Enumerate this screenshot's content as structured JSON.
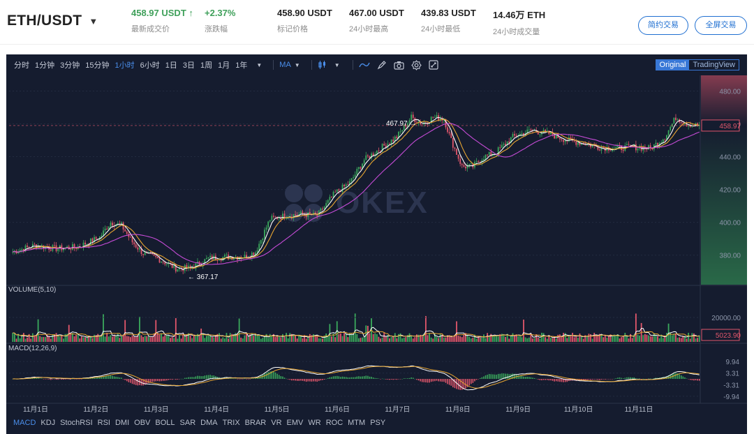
{
  "header": {
    "pair": "ETH/USDT",
    "stats": [
      {
        "value": "458.97 USDT ↑",
        "label": "最新成交价",
        "tone": "up",
        "left": 188
      },
      {
        "value": "+2.37%",
        "label": "涨跌幅",
        "tone": "up",
        "left": 293
      },
      {
        "value": "458.90 USDT",
        "label": "标记价格",
        "tone": "",
        "left": 397
      },
      {
        "value": "467.00 USDT",
        "label": "24小时最高",
        "tone": "",
        "left": 500
      },
      {
        "value": "439.83 USDT",
        "label": "24小时最低",
        "tone": "",
        "left": 603
      },
      {
        "value": "14.46万 ETH",
        "label": "24小时成交量",
        "tone": "",
        "left": 706
      }
    ],
    "simple_trade_label": "简约交易",
    "fullscreen_trade_label": "全屏交易"
  },
  "toolbar": {
    "timeframes": [
      "分时",
      "1分钟",
      "3分钟",
      "15分钟",
      "1小时",
      "6小时",
      "1日",
      "3日",
      "1周",
      "1月",
      "1年"
    ],
    "active_timeframe": "1小时",
    "ma_label": "MA",
    "view_original": "Original",
    "view_tradingview": "TradingView"
  },
  "watermark": "OKEX",
  "chart_data": {
    "type": "candlestick",
    "price_axis_ticks": [
      "480.00",
      "460.00",
      "440.00",
      "420.00",
      "400.00",
      "380.00"
    ],
    "price_range": [
      362,
      487
    ],
    "last_price_label": "458.97",
    "high_annotation": "467.97",
    "low_annotation": "367.17",
    "x_labels": [
      "11月1日",
      "11月2日",
      "11月3日",
      "11月4日",
      "11月5日",
      "11月6日",
      "11月7日",
      "11月8日",
      "11月9日",
      "11月10日",
      "11月11日"
    ],
    "volume": {
      "title": "VOLUME(5,10)",
      "tick": "20000.00",
      "last_label": "5023.90"
    },
    "macd": {
      "title": "MACD(12,26,9)",
      "ticks": [
        "9.94",
        "3.31",
        "-3.31",
        "-9.94"
      ]
    },
    "colors": {
      "up": "#3aa85c",
      "down": "#e0566b",
      "ma_fast": "#ffffff",
      "ma_mid": "#e8a631",
      "ma_slow": "#c54bd6",
      "background": "#151c2f"
    }
  },
  "indicator_tabs": [
    "MACD",
    "KDJ",
    "StochRSI",
    "RSI",
    "DMI",
    "OBV",
    "BOLL",
    "SAR",
    "DMA",
    "TRIX",
    "BRAR",
    "VR",
    "EMV",
    "WR",
    "ROC",
    "MTM",
    "PSY"
  ],
  "active_indicator": "MACD"
}
